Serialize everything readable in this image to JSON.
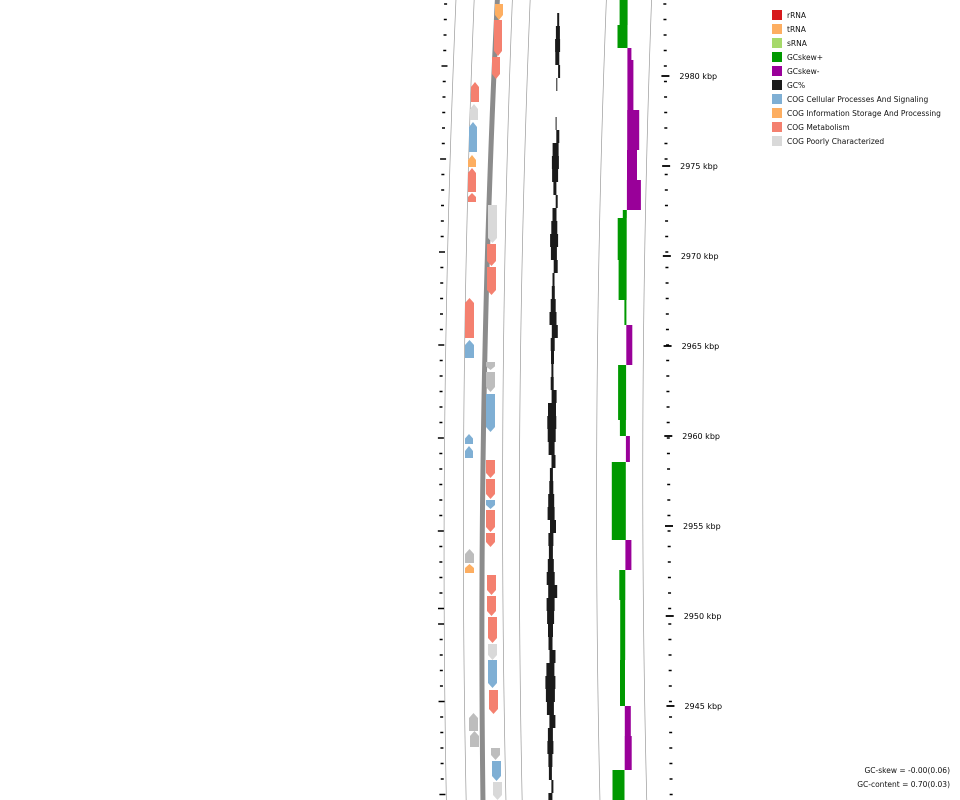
{
  "colors": {
    "rRNA": "#d7191c",
    "tRNA": "#fdae61",
    "sRNA": "#a6d96a",
    "gc_skew_pos": "#009900",
    "gc_skew_neg": "#990099",
    "gc_content": "#1a1a1a",
    "cog_cellular": "#7fafd4",
    "cog_info": "#fdae61",
    "cog_metabolism": "#f4806f",
    "cog_poorly": "#d9d9d9",
    "gene_grey": "#bdbdbd"
  },
  "legend": [
    {
      "label": "rRNA",
      "color": "#d7191c"
    },
    {
      "label": "tRNA",
      "color": "#fdae61"
    },
    {
      "label": "sRNA",
      "color": "#a6d96a"
    },
    {
      "label": "GCskew+",
      "color": "#009900"
    },
    {
      "label": "GCskew-",
      "color": "#990099"
    },
    {
      "label": "GC%",
      "color": "#1a1a1a"
    },
    {
      "label": "COG Cellular Processes And Signaling",
      "color": "#7fafd4"
    },
    {
      "label": "COG Information Storage And Processing",
      "color": "#fdae61"
    },
    {
      "label": "COG Metabolism",
      "color": "#f4806f"
    },
    {
      "label": "COG Poorly Characterized",
      "color": "#d9d9d9"
    }
  ],
  "ticks": [
    {
      "label": "2980 kbp",
      "kbp": 2980
    },
    {
      "label": "2975 kbp",
      "kbp": 2975
    },
    {
      "label": "2970 kbp",
      "kbp": 2970
    },
    {
      "label": "2965 kbp",
      "kbp": 2965
    },
    {
      "label": "2960 kbp",
      "kbp": 2960
    },
    {
      "label": "2955 kbp",
      "kbp": 2955
    },
    {
      "label": "2950 kbp",
      "kbp": 2950
    },
    {
      "label": "2945 kbp",
      "kbp": 2945
    }
  ],
  "stats": {
    "gc_skew": "GC-skew = -0.00(0.06)",
    "gc_content": "GC-content = 0.70(0.03)"
  }
}
